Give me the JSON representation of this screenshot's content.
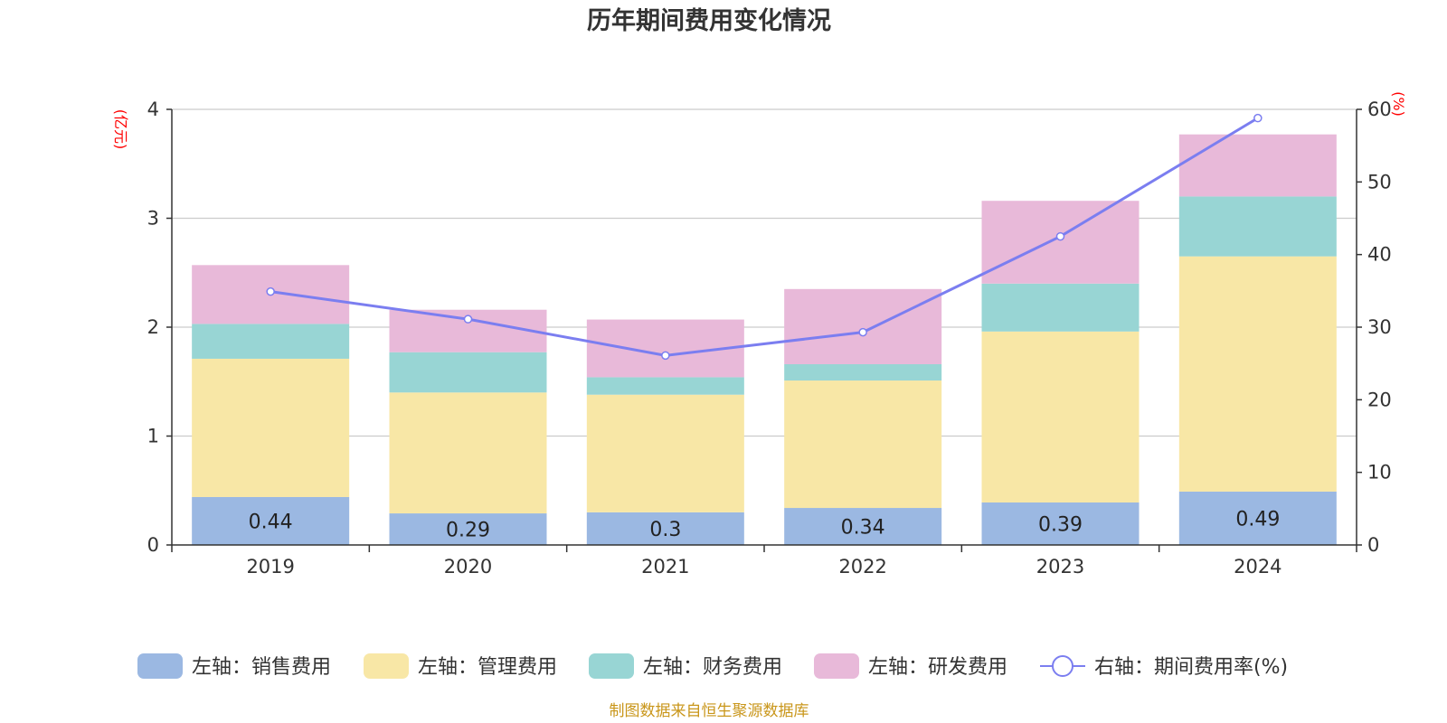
{
  "chart_data": {
    "type": "bar",
    "stacked": true,
    "title": "历年期间费用变化情况",
    "categories": [
      "2019",
      "2020",
      "2021",
      "2022",
      "2023",
      "2024"
    ],
    "left_axis": {
      "unit": "(亿元)",
      "ylim": [
        0,
        4
      ],
      "ticks": [
        "0",
        "1",
        "2",
        "3",
        "4"
      ]
    },
    "right_axis": {
      "unit": "(%)",
      "ylim": [
        0,
        60
      ],
      "ticks": [
        "0",
        "10",
        "20",
        "30",
        "40",
        "50",
        "60"
      ]
    },
    "series": [
      {
        "name": "左轴：销售费用",
        "type": "bar",
        "axis": "left",
        "color": "#9bb8e2",
        "values": [
          0.44,
          0.29,
          0.3,
          0.34,
          0.39,
          0.49
        ],
        "labels": [
          "0.44",
          "0.29",
          "0.3",
          "0.34",
          "0.39",
          "0.49"
        ]
      },
      {
        "name": "左轴：管理费用",
        "type": "bar",
        "axis": "left",
        "color": "#f8e7a6",
        "values": [
          1.27,
          1.11,
          1.08,
          1.17,
          1.57,
          2.16
        ]
      },
      {
        "name": "左轴：财务费用",
        "type": "bar",
        "axis": "left",
        "color": "#98d5d4",
        "values": [
          0.32,
          0.37,
          0.16,
          0.15,
          0.44,
          0.55
        ]
      },
      {
        "name": "左轴：研发费用",
        "type": "bar",
        "axis": "left",
        "color": "#e8b9d9",
        "values": [
          0.54,
          0.39,
          0.53,
          0.69,
          0.76,
          0.57
        ]
      },
      {
        "name": "右轴：期间费用率(%)",
        "type": "line",
        "axis": "right",
        "color": "#7b7ef0",
        "values": [
          34.9,
          31.1,
          26.1,
          29.3,
          42.5,
          58.8
        ]
      }
    ],
    "grid": true,
    "legend_position": "bottom"
  },
  "footnote": "制图数据来自恒生聚源数据库"
}
